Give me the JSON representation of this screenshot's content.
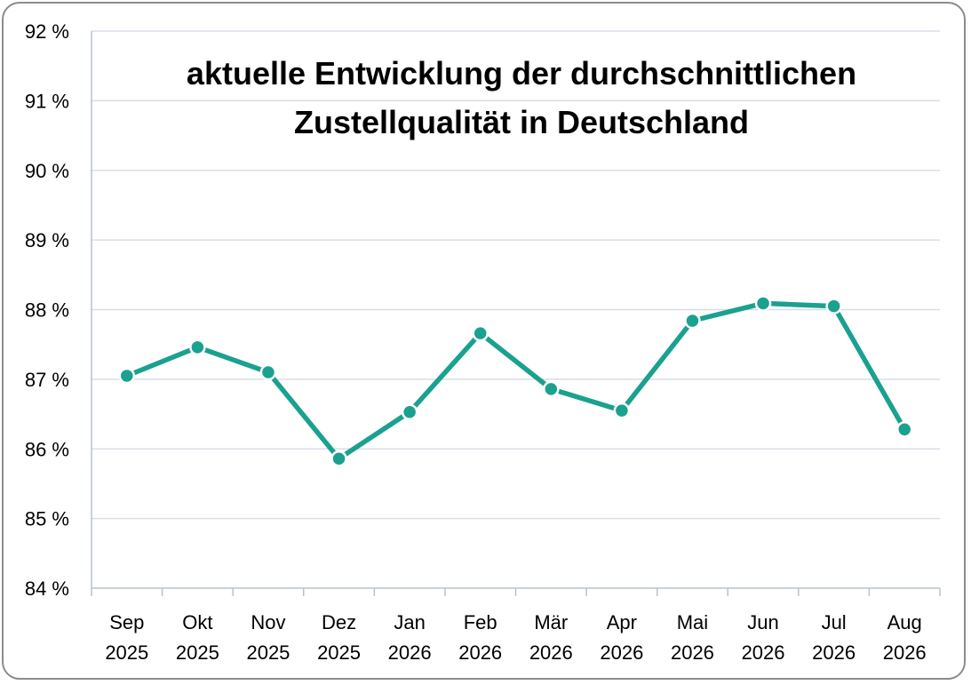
{
  "chart_data": {
    "type": "line",
    "title_lines": [
      "aktuelle Entwicklung der durchschnittlichen",
      "Zustellqualität in Deutschland"
    ],
    "categories": [
      [
        "Sep",
        "2025"
      ],
      [
        "Okt",
        "2025"
      ],
      [
        "Nov",
        "2025"
      ],
      [
        "Dez",
        "2025"
      ],
      [
        "Jan",
        "2026"
      ],
      [
        "Feb",
        "2026"
      ],
      [
        "Mär",
        "2026"
      ],
      [
        "Apr",
        "2026"
      ],
      [
        "Mai",
        "2026"
      ],
      [
        "Jun",
        "2026"
      ],
      [
        "Jul",
        "2026"
      ],
      [
        "Aug",
        "2026"
      ]
    ],
    "values": [
      87.05,
      87.46,
      87.1,
      85.86,
      86.53,
      87.66,
      86.86,
      86.55,
      87.84,
      88.09,
      88.05,
      86.28
    ],
    "ylim": [
      84,
      92
    ],
    "yticks": [
      84,
      85,
      86,
      87,
      88,
      89,
      90,
      91,
      92
    ],
    "ytick_labels": [
      "84 %",
      "85 %",
      "86 %",
      "87 %",
      "88 %",
      "89 %",
      "90 %",
      "91 %",
      "92 %"
    ],
    "grid": true,
    "legend": "none",
    "colors": {
      "series": "#1aa18f",
      "grid": "#d9dde8",
      "axis": "#b8c0d4",
      "frame": "#8c8c8c"
    }
  }
}
